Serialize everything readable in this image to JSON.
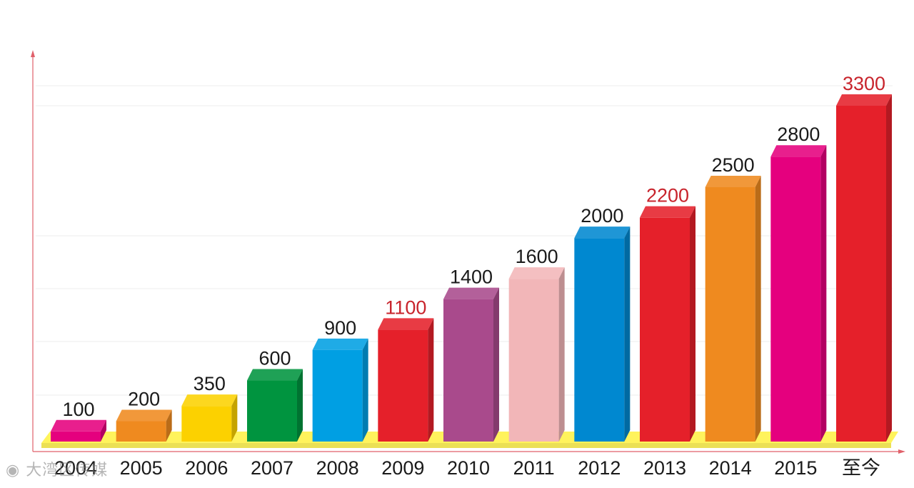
{
  "chart_data": {
    "type": "bar",
    "categories": [
      "2004",
      "2005",
      "2006",
      "2007",
      "2008",
      "2009",
      "2010",
      "2011",
      "2012",
      "2013",
      "2014",
      "2015",
      "至今"
    ],
    "values": [
      100,
      200,
      350,
      600,
      900,
      1100,
      1400,
      1600,
      2000,
      2200,
      2500,
      2800,
      3300
    ],
    "title": "",
    "xlabel": "",
    "ylabel": "",
    "ylim": [
      0,
      3500
    ],
    "grid": true,
    "legend": "none",
    "bar_colors": [
      "#e5007e",
      "#ef8a1f",
      "#fcd100",
      "#00943f",
      "#009fe3",
      "#e5202a",
      "#a94a8c",
      "#f2b6b8",
      "#0088d0",
      "#e5202a",
      "#ef8a1f",
      "#e5007e",
      "#e5202a"
    ],
    "label_colors": [
      "#1a1a1a",
      "#1a1a1a",
      "#1a1a1a",
      "#1a1a1a",
      "#1a1a1a",
      "#c8242c",
      "#1a1a1a",
      "#1a1a1a",
      "#1a1a1a",
      "#c8242c",
      "#1a1a1a",
      "#1a1a1a",
      "#c8242c"
    ],
    "floor_color": "#fff35c",
    "axis_color": "#e0606a"
  },
  "watermark": {
    "text": "大湾区传媒",
    "icon": "weibo-icon"
  }
}
